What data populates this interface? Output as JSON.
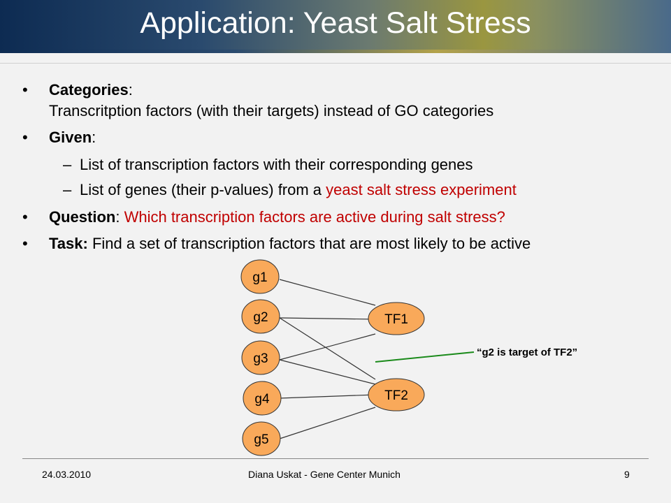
{
  "title": "Application: Yeast Salt Stress",
  "bullets": {
    "categories": {
      "label": "Categories",
      "colon": ":",
      "line2": "Transcritption factors (with their targets) instead of GO categories"
    },
    "given": {
      "label": "Given",
      "colon": ":",
      "subs": [
        {
          "plain": "List of transcription factors with their corresponding genes",
          "red": ""
        },
        {
          "plain": "List of genes (their p-values) from a ",
          "red": "yeast salt stress experiment"
        }
      ]
    },
    "question": {
      "label": "Question",
      "colon": ": ",
      "red": "Which transcription factors are active during salt stress?"
    },
    "task": {
      "label": "Task:",
      "text": " Find a set of transcription factors that are most likely to be active"
    }
  },
  "diagram": {
    "genes": [
      "g1",
      "g2",
      "g3",
      "g4",
      "g5"
    ],
    "tfs": [
      "TF1",
      "TF2"
    ],
    "edges": [
      [
        "g1",
        "TF1"
      ],
      [
        "g2",
        "TF1"
      ],
      [
        "g3",
        "TF1"
      ],
      [
        "g2",
        "TF2"
      ],
      [
        "g3",
        "TF2"
      ],
      [
        "g4",
        "TF2"
      ],
      [
        "g5",
        "TF2"
      ]
    ],
    "annotation": "“g2 is target of TF2”",
    "colors": {
      "node_fill": "#f9a95a",
      "node_stroke": "#333333",
      "edge": "#333333",
      "pointer": "#1a8a1a"
    }
  },
  "footer": {
    "date": "24.03.2010",
    "center": "Diana Uskat - Gene Center Munich",
    "page": "9"
  },
  "colors": {
    "highlight": "#c00000",
    "background": "#f2f2f2"
  }
}
